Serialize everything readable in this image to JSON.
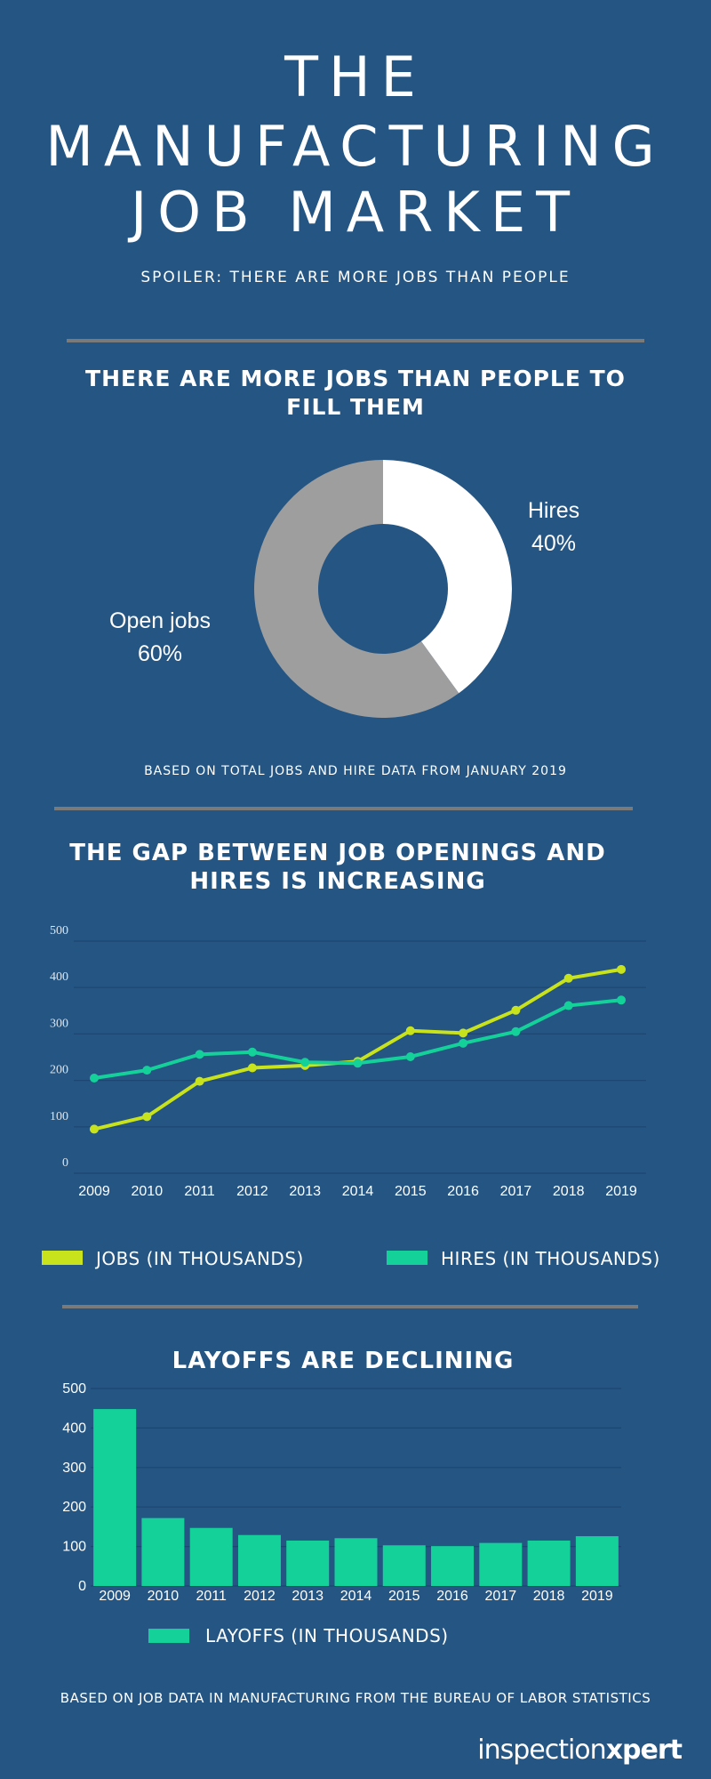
{
  "header": {
    "title_lines": [
      "THE",
      "MANUFACTURING",
      "JOB MARKET"
    ],
    "subtitle": "SPOILER: THERE ARE MORE JOBS THAN PEOPLE"
  },
  "chart_data": [
    {
      "type": "pie",
      "title": "THERE ARE MORE JOBS THAN PEOPLE TO FILL THEM",
      "categories": [
        "Hires",
        "Open jobs"
      ],
      "values": [
        40,
        60
      ],
      "value_labels": [
        "40%",
        "60%"
      ],
      "colors": [
        "#ffffff",
        "#9e9e9e"
      ],
      "donut": true,
      "note": "BASED ON TOTAL JOBS AND HIRE DATA FROM JANUARY 2019"
    },
    {
      "type": "line",
      "title": "THE GAP BETWEEN JOB OPENINGS AND HIRES IS INCREASING",
      "categories": [
        "2009",
        "2010",
        "2011",
        "2012",
        "2013",
        "2014",
        "2015",
        "2016",
        "2017",
        "2018",
        "2019"
      ],
      "series": [
        {
          "name": "JOBS (IN THOUSANDS)",
          "color": "#c8e31c",
          "values": [
            95,
            122,
            198,
            227,
            232,
            241,
            307,
            302,
            351,
            420,
            439
          ]
        },
        {
          "name": "HIRES (IN THOUSANDS)",
          "color": "#14d19a",
          "values": [
            205,
            222,
            256,
            261,
            239,
            237,
            251,
            280,
            305,
            361,
            373
          ]
        }
      ],
      "ylim": [
        0,
        500
      ],
      "yticks": [
        0,
        100,
        200,
        300,
        400,
        500
      ],
      "grid": true
    },
    {
      "type": "bar",
      "title": "LAYOFFS ARE DECLINING",
      "categories": [
        "2009",
        "2010",
        "2011",
        "2012",
        "2013",
        "2014",
        "2015",
        "2016",
        "2017",
        "2018",
        "2019"
      ],
      "series": [
        {
          "name": "LAYOFFS (IN THOUSANDS)",
          "color": "#14d19a",
          "values": [
            448,
            172,
            147,
            129,
            115,
            121,
            103,
            101,
            109,
            115,
            126
          ]
        }
      ],
      "ylim": [
        0,
        500
      ],
      "yticks": [
        0,
        100,
        200,
        300,
        400,
        500
      ],
      "grid": true
    }
  ],
  "footer": {
    "note": "BASED ON JOB DATA IN MANUFACTURING FROM THE BUREAU OF LABOR STATISTICS",
    "logo_light": "inspection",
    "logo_bold": "xpert"
  }
}
